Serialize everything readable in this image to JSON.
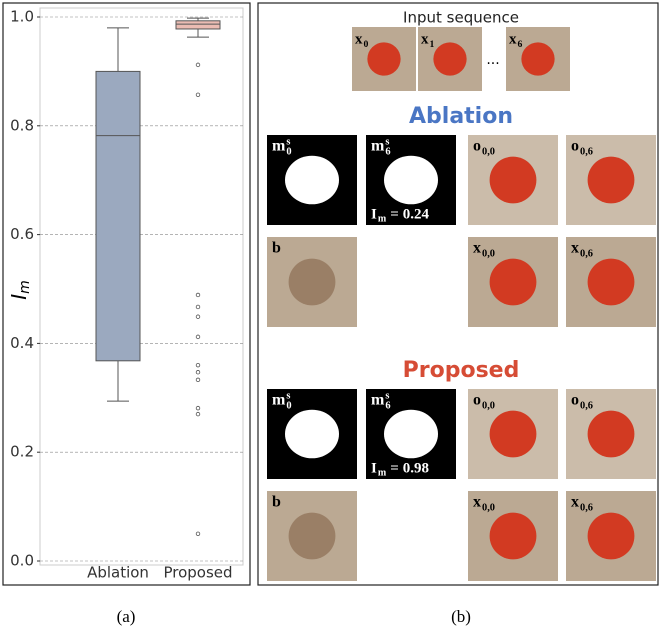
{
  "chart_data": {
    "type": "box",
    "y_label": "I",
    "y_label_sub": "m",
    "categories": [
      "Ablation",
      "Proposed"
    ],
    "colors": [
      "#9ba9bf",
      "#ebbcb3"
    ],
    "stats": {
      "whislo": [
        0.294,
        0.963
      ],
      "q1": [
        0.368,
        0.978
      ],
      "median": [
        0.782,
        0.987
      ],
      "q3": [
        0.9,
        0.993
      ],
      "whishi": [
        0.98,
        0.998
      ]
    },
    "outliers": [
      [],
      [
        0.912,
        0.857,
        0.489,
        0.467,
        0.449,
        0.412,
        0.36,
        0.347,
        0.333,
        0.281,
        0.27,
        0.05
      ]
    ],
    "ylim": [
      0,
      1
    ],
    "yticks": [
      {
        "value": 0,
        "label": "0.0"
      },
      0.2,
      0.4,
      0.6,
      0.8,
      {
        "value": 1,
        "label": "1.0"
      }
    ],
    "grid": true
  },
  "captions": [
    "(a)",
    "(b)"
  ],
  "panel_b": {
    "input_title": "Input sequence",
    "inputs": [
      {
        "main": "x",
        "sub": "0"
      },
      {
        "main": "x",
        "sub": "1"
      },
      {
        "main": "x",
        "sub": "6"
      }
    ],
    "ellipsis": "...",
    "sections": [
      {
        "title": "Ablation",
        "labels": [
          {
            "main": "m",
            "sub": "0",
            "sup": "s"
          },
          {
            "main": "m",
            "sub": "6",
            "sup": "s"
          },
          {
            "main": "o",
            "sub": "0,0"
          },
          {
            "main": "o",
            "sub": "0,6"
          },
          {
            "main": "b"
          },
          {
            "main": "x",
            "sub": "0,0"
          },
          {
            "main": "x",
            "sub": "0,6"
          }
        ],
        "score": {
          "symbol": "I",
          "subscript": "m",
          "relation": "=",
          "value": 0.24
        }
      },
      {
        "title": "Proposed",
        "labels": [
          {
            "main": "m",
            "sub": "0",
            "sup": "s"
          },
          {
            "main": "m",
            "sub": "6",
            "sup": "s"
          },
          {
            "main": "o",
            "sub": "0,0"
          },
          {
            "main": "o",
            "sub": "0,6"
          },
          {
            "main": "b"
          },
          {
            "main": "x",
            "sub": "0,0"
          },
          {
            "main": "x",
            "sub": "0,6"
          }
        ],
        "score": {
          "symbol": "I",
          "subscript": "m",
          "relation": "=",
          "value": 0.98
        }
      }
    ]
  }
}
